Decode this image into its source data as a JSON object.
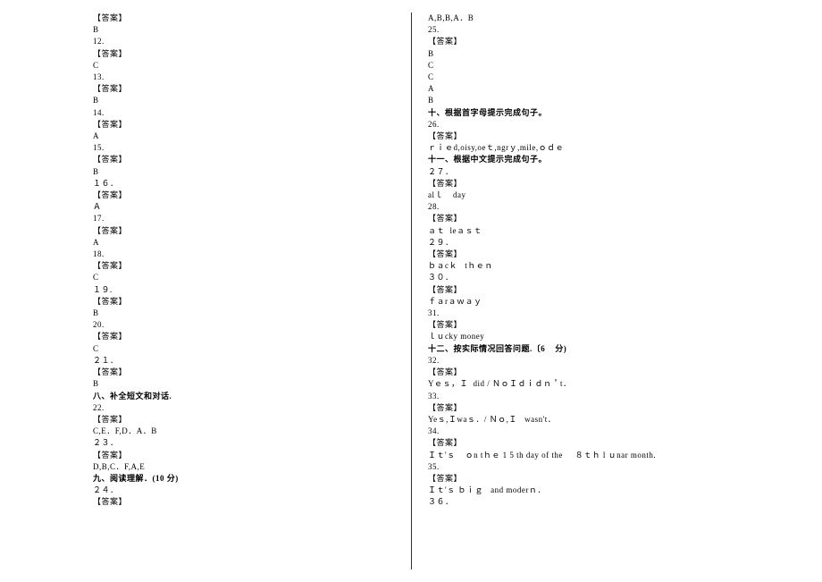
{
  "left": [
    {
      "t": "【答案】",
      "b": false
    },
    {
      "t": "B",
      "b": false
    },
    {
      "t": "12.",
      "b": false
    },
    {
      "t": "【答案】",
      "b": false
    },
    {
      "t": "C",
      "b": false
    },
    {
      "t": "13.",
      "b": false
    },
    {
      "t": "【答案】",
      "b": false
    },
    {
      "t": "B",
      "b": false
    },
    {
      "t": "14.",
      "b": false
    },
    {
      "t": "【答案】",
      "b": false
    },
    {
      "t": "A",
      "b": false
    },
    {
      "t": "15.",
      "b": false
    },
    {
      "t": "【答案】",
      "b": false
    },
    {
      "t": "B",
      "b": false
    },
    {
      "t": "１６．",
      "b": false
    },
    {
      "t": "【答案】",
      "b": false
    },
    {
      "t": "Ａ",
      "b": false
    },
    {
      "t": "17.",
      "b": false
    },
    {
      "t": "【答案】",
      "b": false
    },
    {
      "t": "A",
      "b": false
    },
    {
      "t": "18.",
      "b": false
    },
    {
      "t": "【答案】",
      "b": false
    },
    {
      "t": "C",
      "b": false
    },
    {
      "t": "１９.",
      "b": false
    },
    {
      "t": "【答案】",
      "b": false
    },
    {
      "t": "B",
      "b": false
    },
    {
      "t": "20.",
      "b": false
    },
    {
      "t": "【答案】",
      "b": false
    },
    {
      "t": "C",
      "b": false
    },
    {
      "t": "２１．",
      "b": false
    },
    {
      "t": "【答案】",
      "b": false
    },
    {
      "t": "B",
      "b": false
    },
    {
      "t": "八、补全短文和对话.",
      "b": true
    },
    {
      "t": "22.",
      "b": false
    },
    {
      "t": "【答案】",
      "b": false
    },
    {
      "t": "C,E．F,D．A．B",
      "b": false
    },
    {
      "t": "２３．",
      "b": false
    },
    {
      "t": "【答案】",
      "b": false
    },
    {
      "t": "D,B,C．F,A,E",
      "b": false
    },
    {
      "t": "九、阅读理解．(10 分)",
      "b": true
    },
    {
      "t": "２４．",
      "b": false
    },
    {
      "t": "【答案】",
      "b": false
    }
  ],
  "right": [
    {
      "t": "A,B,B,A．B",
      "b": false
    },
    {
      "t": "25.",
      "b": false
    },
    {
      "t": "【答案】",
      "b": false
    },
    {
      "t": "B",
      "b": false
    },
    {
      "t": "C",
      "b": false
    },
    {
      "t": "",
      "b": false
    },
    {
      "t": "C",
      "b": false
    },
    {
      "t": "",
      "b": false
    },
    {
      "t": "A",
      "b": false
    },
    {
      "t": "",
      "b": false
    },
    {
      "t": "B",
      "b": false
    },
    {
      "t": "十、根据首字母提示完成句子。",
      "b": true
    },
    {
      "t": "26.",
      "b": false
    },
    {
      "t": "【答案】",
      "b": false
    },
    {
      "t": "ｒｉｅd,oisy,oeｔ,ngrｙ,mile,ｏｄｅ",
      "b": false
    },
    {
      "t": "十一、根据中文提示完成句子。",
      "b": true
    },
    {
      "t": "２７．",
      "b": false
    },
    {
      "t": "【答案】",
      "b": false
    },
    {
      "t": "alｌ    day",
      "b": false
    },
    {
      "t": "28.",
      "b": false
    },
    {
      "t": "【答案】",
      "b": false
    },
    {
      "t": "ａｔ  leａｓｔ",
      "b": false
    },
    {
      "t": "２９．",
      "b": false
    },
    {
      "t": "【答案】",
      "b": false
    },
    {
      "t": "ｂａcｋ   tｈｅｎ",
      "b": false
    },
    {
      "t": "３０．",
      "b": false
    },
    {
      "t": "【答案】",
      "b": false
    },
    {
      "t": "ｆａrａｗａｙ",
      "b": false
    },
    {
      "t": "31.",
      "b": false
    },
    {
      "t": "【答案】",
      "b": false
    },
    {
      "t": "ｌｕcky money",
      "b": false
    },
    {
      "t": "十二、按实际情况回答问题.〔6    分)",
      "b": true
    },
    {
      "t": "32.",
      "b": false
    },
    {
      "t": "【答案】",
      "b": false
    },
    {
      "t": "Yｅｓ，Ｉ  did / ＮｏＩｄｉｄｎ＇t．",
      "b": false
    },
    {
      "t": "33.",
      "b": false
    },
    {
      "t": "【答案】",
      "b": false
    },
    {
      "t": "Yeｓ,Ｉwaｓ．/ Ｎｏ,Ｉ   wasn't．",
      "b": false
    },
    {
      "t": "34.",
      "b": false
    },
    {
      "t": "【答案】",
      "b": false
    },
    {
      "t": "Ｉｔ'ｓ    ｏn tｈｅ 1 5 th day of the     ８ｔｈ l ｕnar month.",
      "b": false
    },
    {
      "t": "35.",
      "b": false
    },
    {
      "t": "【答案】",
      "b": false
    },
    {
      "t": "Ｉｔ'ｓ ｂｉｇ   and moderｎ．",
      "b": false
    },
    {
      "t": "３６．",
      "b": false
    }
  ]
}
